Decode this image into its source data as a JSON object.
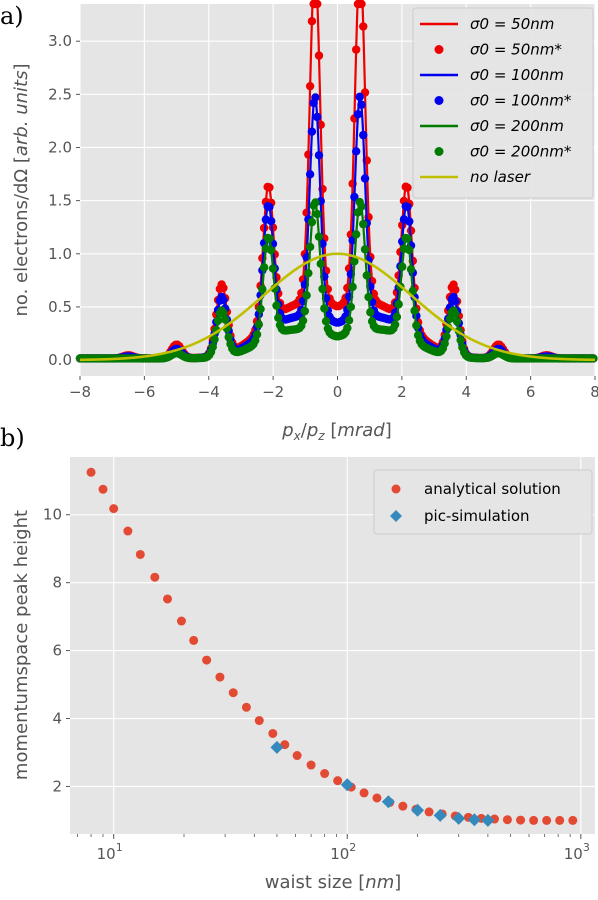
{
  "chart_data": [
    {
      "panel_label": "a)",
      "type": "line",
      "xlabel": "px/pz [mrad]",
      "ylabel": "no. electrons/dΩ [arb. units]",
      "xlim": [
        -8,
        8
      ],
      "ylim": [
        -0.15,
        3.35
      ],
      "xticks": [
        "−8",
        "−6",
        "−4",
        "−2",
        "0",
        "2",
        "4",
        "6",
        "8"
      ],
      "yticks": [
        "0.0",
        "0.5",
        "1.0",
        "1.5",
        "2.0",
        "2.5",
        "3.0"
      ],
      "grid": true,
      "legend_position": "top-right",
      "peak_positions": [
        -6.5,
        -5.0,
        -3.6,
        -2.15,
        -0.7,
        0.7,
        2.15,
        3.6,
        5.0,
        6.5
      ],
      "series": [
        {
          "name": "σ0 = 50nm",
          "style": "line",
          "color": "#ee0000",
          "peak_heights": [
            0.02,
            0.12,
            0.66,
            1.3,
            3.15,
            3.15,
            1.3,
            0.66,
            0.12,
            0.02
          ]
        },
        {
          "name": "σ0 = 50nm*",
          "style": "markers",
          "color": "#ee0000",
          "peak_heights": [
            0.03,
            0.13,
            0.66,
            1.3,
            3.15,
            3.15,
            1.3,
            0.66,
            0.13,
            0.03
          ]
        },
        {
          "name": "σ0 = 100nm",
          "style": "line",
          "color": "#0000ee",
          "peak_heights": [
            0.01,
            0.08,
            0.55,
            1.18,
            2.07,
            2.07,
            1.18,
            0.55,
            0.08,
            0.01
          ]
        },
        {
          "name": "σ0 = 100nm*",
          "style": "markers",
          "color": "#0000ee",
          "peak_heights": [
            0.02,
            0.09,
            0.55,
            1.18,
            2.08,
            2.08,
            1.18,
            0.55,
            0.09,
            0.02
          ]
        },
        {
          "name": "σ0 = 200nm",
          "style": "line",
          "color": "#007a00",
          "peak_heights": [
            0.0,
            0.04,
            0.42,
            0.95,
            1.21,
            1.21,
            0.95,
            0.42,
            0.04,
            0.0
          ]
        },
        {
          "name": "σ0 = 200nm*",
          "style": "markers",
          "color": "#007a00",
          "peak_heights": [
            0.0,
            0.05,
            0.43,
            0.95,
            1.22,
            1.22,
            0.95,
            0.43,
            0.05,
            0.0
          ]
        },
        {
          "name": "no laser",
          "style": "line",
          "color": "#bfbf00",
          "gaussian": {
            "amplitude": 1.0,
            "sigma_mrad": 2.3
          }
        }
      ]
    },
    {
      "panel_label": "b)",
      "type": "scatter",
      "xlabel": "waist size [nm]",
      "ylabel": "momentumspace peak height",
      "xscale": "log",
      "xlim": [
        6.5,
        1150
      ],
      "ylim": [
        0.6,
        11.7
      ],
      "xticks": [
        10,
        100,
        1000
      ],
      "xtick_labels": [
        "10",
        "10",
        "10"
      ],
      "xtick_exponents": [
        "1",
        "2",
        "3"
      ],
      "yticks": [
        "2",
        "4",
        "6",
        "8",
        "10"
      ],
      "grid": true,
      "legend_position": "top-right",
      "series": [
        {
          "name": "analytical solution",
          "marker": "circle",
          "color": "#e24a33",
          "x": [
            8,
            9,
            10,
            11.5,
            13,
            15,
            17,
            19.5,
            22,
            25,
            28.5,
            32.5,
            37,
            42,
            48,
            54,
            61,
            70,
            80,
            91,
            104,
            118,
            134,
            152,
            173,
            197,
            224,
            255,
            290,
            330,
            375,
            427,
            485,
            552,
            628,
            714,
            812,
            924
          ],
          "y": [
            11.25,
            10.75,
            10.18,
            9.52,
            8.83,
            8.16,
            7.52,
            6.87,
            6.3,
            5.72,
            5.22,
            4.76,
            4.33,
            3.94,
            3.56,
            3.23,
            2.91,
            2.63,
            2.38,
            2.17,
            1.98,
            1.81,
            1.66,
            1.53,
            1.42,
            1.33,
            1.25,
            1.19,
            1.13,
            1.09,
            1.06,
            1.04,
            1.02,
            1.01,
            1.0,
            1.0,
            1.0,
            1.0
          ]
        },
        {
          "name": "pic-simulation",
          "marker": "diamond",
          "color": "#348abd",
          "x": [
            50,
            100,
            150,
            200,
            250,
            300,
            350,
            400
          ],
          "y": [
            3.15,
            2.05,
            1.55,
            1.3,
            1.15,
            1.06,
            1.02,
            1.0
          ]
        }
      ]
    }
  ]
}
